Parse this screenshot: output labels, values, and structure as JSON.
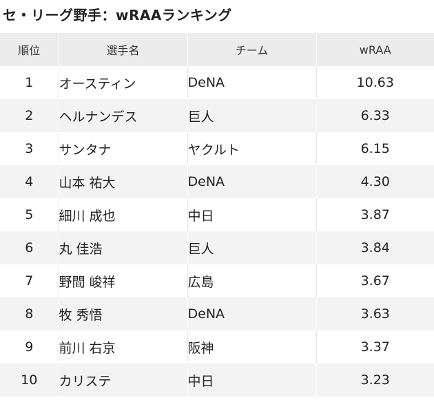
{
  "title": "セ・リーグ野手：wRAAランキング",
  "columns": {
    "rank": "順位",
    "player": "選手名",
    "team": "チーム",
    "wraa": "wRAA"
  },
  "rows": [
    {
      "rank": "1",
      "player": "オースティン",
      "team": "DeNA",
      "wraa": "10.63"
    },
    {
      "rank": "2",
      "player": "ヘルナンデス",
      "team": "巨人",
      "wraa": "6.33"
    },
    {
      "rank": "3",
      "player": "サンタナ",
      "team": "ヤクルト",
      "wraa": "6.15"
    },
    {
      "rank": "4",
      "player": "山本 祐大",
      "team": "DeNA",
      "wraa": "4.30"
    },
    {
      "rank": "5",
      "player": "細川 成也",
      "team": "中日",
      "wraa": "3.87"
    },
    {
      "rank": "6",
      "player": "丸 佳浩",
      "team": "巨人",
      "wraa": "3.84"
    },
    {
      "rank": "7",
      "player": "野間 峻祥",
      "team": "広島",
      "wraa": "3.67"
    },
    {
      "rank": "8",
      "player": "牧 秀悟",
      "team": "DeNA",
      "wraa": "3.63"
    },
    {
      "rank": "9",
      "player": "前川 右京",
      "team": "阪神",
      "wraa": "3.37"
    },
    {
      "rank": "10",
      "player": "カリステ",
      "team": "中日",
      "wraa": "3.23"
    }
  ]
}
